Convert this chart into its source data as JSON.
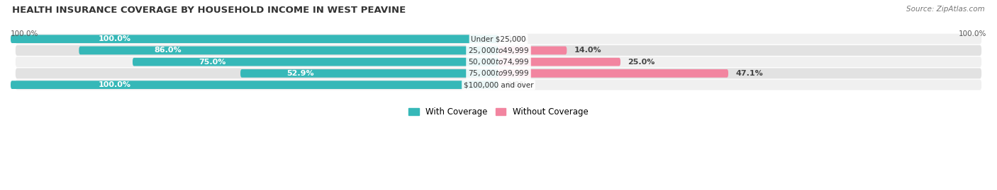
{
  "title": "HEALTH INSURANCE COVERAGE BY HOUSEHOLD INCOME IN WEST PEAVINE",
  "source": "Source: ZipAtlas.com",
  "categories": [
    "Under $25,000",
    "$25,000 to $49,999",
    "$50,000 to $74,999",
    "$75,000 to $99,999",
    "$100,000 and over"
  ],
  "with_coverage": [
    100.0,
    86.0,
    75.0,
    52.9,
    100.0
  ],
  "without_coverage": [
    0.0,
    14.0,
    25.0,
    47.1,
    0.0
  ],
  "color_with": "#36b8b8",
  "color_without": "#f285a0",
  "row_bg_light": "#f0f0f0",
  "row_bg_dark": "#e2e2e2",
  "figsize": [
    14.06,
    2.69
  ],
  "dpi": 100
}
